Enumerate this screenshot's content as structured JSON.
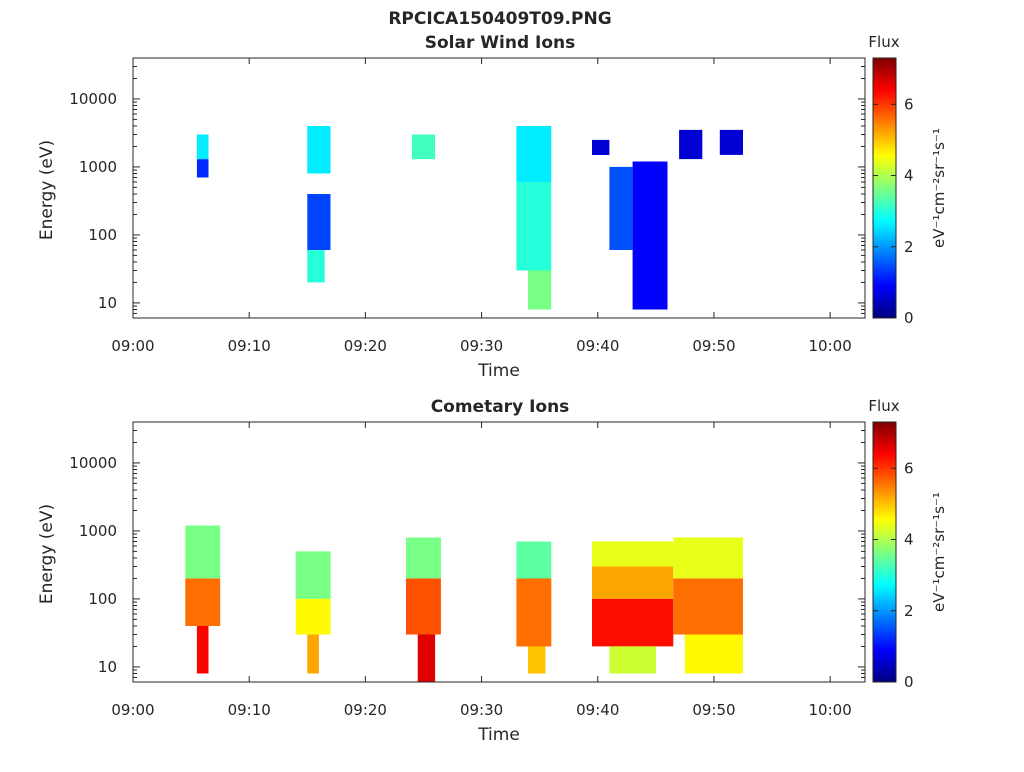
{
  "figure_title": "RPCICA150409T09.PNG",
  "colormap": [
    "#00007f",
    "#0000ff",
    "#007fff",
    "#00ffff",
    "#7fff7f",
    "#ffff00",
    "#ff7f00",
    "#ff0000",
    "#7f0000"
  ],
  "colorbar": {
    "title": "Flux",
    "label": "eV⁻¹cm⁻²sr⁻¹s⁻¹",
    "ticks": [
      "0",
      "2",
      "4",
      "6"
    ],
    "range": [
      0,
      7.3
    ]
  },
  "chart_data": [
    {
      "type": "heatmap",
      "title": "Solar Wind Ions",
      "xlabel": "Time",
      "ylabel": "Energy (eV)",
      "yscale": "log",
      "xlim": [
        "09:00",
        "10:03"
      ],
      "ylim": [
        6,
        40000
      ],
      "x_ticks": [
        "09:00",
        "09:10",
        "09:20",
        "09:30",
        "09:40",
        "09:50",
        "10:00"
      ],
      "y_ticks": [
        "10",
        "100",
        "1000",
        "10000"
      ],
      "cells": [
        {
          "t": "09:05:30",
          "t_end": "09:06:30",
          "e_lo": 1300,
          "e_hi": 3000,
          "flux": 2.6
        },
        {
          "t": "09:05:30",
          "t_end": "09:06:30",
          "e_lo": 700,
          "e_hi": 1300,
          "flux": 1.2
        },
        {
          "t": "09:15:00",
          "t_end": "09:17:00",
          "e_lo": 800,
          "e_hi": 4000,
          "flux": 2.6
        },
        {
          "t": "09:15:00",
          "t_end": "09:17:00",
          "e_lo": 60,
          "e_hi": 400,
          "flux": 1.4
        },
        {
          "t": "09:15:00",
          "t_end": "09:16:30",
          "e_lo": 20,
          "e_hi": 60,
          "flux": 3.0
        },
        {
          "t": "09:24:00",
          "t_end": "09:26:00",
          "e_lo": 1300,
          "e_hi": 3000,
          "flux": 3.2
        },
        {
          "t": "09:33:00",
          "t_end": "09:36:00",
          "e_lo": 600,
          "e_hi": 4000,
          "flux": 2.6
        },
        {
          "t": "09:33:00",
          "t_end": "09:36:00",
          "e_lo": 30,
          "e_hi": 600,
          "flux": 3.0
        },
        {
          "t": "09:34:00",
          "t_end": "09:36:00",
          "e_lo": 8,
          "e_hi": 30,
          "flux": 3.6
        },
        {
          "t": "09:39:30",
          "t_end": "09:41:00",
          "e_lo": 1500,
          "e_hi": 2500,
          "flux": 0.6
        },
        {
          "t": "09:41:00",
          "t_end": "09:43:00",
          "e_lo": 60,
          "e_hi": 1000,
          "flux": 1.5
        },
        {
          "t": "09:43:00",
          "t_end": "09:46:00",
          "e_lo": 8,
          "e_hi": 1200,
          "flux": 0.9
        },
        {
          "t": "09:47:00",
          "t_end": "09:49:00",
          "e_lo": 1300,
          "e_hi": 3500,
          "flux": 0.6
        },
        {
          "t": "09:50:30",
          "t_end": "09:52:30",
          "e_lo": 1500,
          "e_hi": 3500,
          "flux": 0.6
        }
      ]
    },
    {
      "type": "heatmap",
      "title": "Cometary Ions",
      "xlabel": "Time",
      "ylabel": "Energy (eV)",
      "yscale": "log",
      "xlim": [
        "09:00",
        "10:03"
      ],
      "ylim": [
        6,
        40000
      ],
      "x_ticks": [
        "09:00",
        "09:10",
        "09:20",
        "09:30",
        "09:40",
        "09:50",
        "10:00"
      ],
      "y_ticks": [
        "10",
        "100",
        "1000",
        "10000"
      ],
      "cells": [
        {
          "t": "09:04:30",
          "t_end": "09:07:30",
          "e_lo": 200,
          "e_hi": 1200,
          "flux": 3.6
        },
        {
          "t": "09:04:30",
          "t_end": "09:07:30",
          "e_lo": 40,
          "e_hi": 200,
          "flux": 5.6
        },
        {
          "t": "09:05:30",
          "t_end": "09:06:30",
          "e_lo": 8,
          "e_hi": 40,
          "flux": 6.4
        },
        {
          "t": "09:14:00",
          "t_end": "09:17:00",
          "e_lo": 100,
          "e_hi": 500,
          "flux": 3.6
        },
        {
          "t": "09:14:00",
          "t_end": "09:17:00",
          "e_lo": 30,
          "e_hi": 100,
          "flux": 4.6
        },
        {
          "t": "09:15:00",
          "t_end": "09:16:00",
          "e_lo": 8,
          "e_hi": 30,
          "flux": 5.2
        },
        {
          "t": "09:23:30",
          "t_end": "09:26:30",
          "e_lo": 200,
          "e_hi": 800,
          "flux": 3.6
        },
        {
          "t": "09:23:30",
          "t_end": "09:26:30",
          "e_lo": 30,
          "e_hi": 200,
          "flux": 5.8
        },
        {
          "t": "09:24:30",
          "t_end": "09:26:00",
          "e_lo": 6,
          "e_hi": 30,
          "flux": 6.6
        },
        {
          "t": "09:33:00",
          "t_end": "09:36:00",
          "e_lo": 200,
          "e_hi": 700,
          "flux": 3.4
        },
        {
          "t": "09:33:00",
          "t_end": "09:36:00",
          "e_lo": 20,
          "e_hi": 200,
          "flux": 5.6
        },
        {
          "t": "09:34:00",
          "t_end": "09:35:30",
          "e_lo": 8,
          "e_hi": 20,
          "flux": 5.0
        },
        {
          "t": "09:39:30",
          "t_end": "09:46:30",
          "e_lo": 300,
          "e_hi": 700,
          "flux": 4.4
        },
        {
          "t": "09:39:30",
          "t_end": "09:46:30",
          "e_lo": 100,
          "e_hi": 300,
          "flux": 5.2
        },
        {
          "t": "09:39:30",
          "t_end": "09:46:30",
          "e_lo": 20,
          "e_hi": 100,
          "flux": 6.3
        },
        {
          "t": "09:41:00",
          "t_end": "09:45:00",
          "e_lo": 8,
          "e_hi": 20,
          "flux": 4.2
        },
        {
          "t": "09:46:30",
          "t_end": "09:52:30",
          "e_lo": 200,
          "e_hi": 800,
          "flux": 4.4
        },
        {
          "t": "09:46:30",
          "t_end": "09:52:30",
          "e_lo": 30,
          "e_hi": 200,
          "flux": 5.6
        },
        {
          "t": "09:47:30",
          "t_end": "09:52:30",
          "e_lo": 8,
          "e_hi": 30,
          "flux": 4.6
        }
      ]
    }
  ]
}
